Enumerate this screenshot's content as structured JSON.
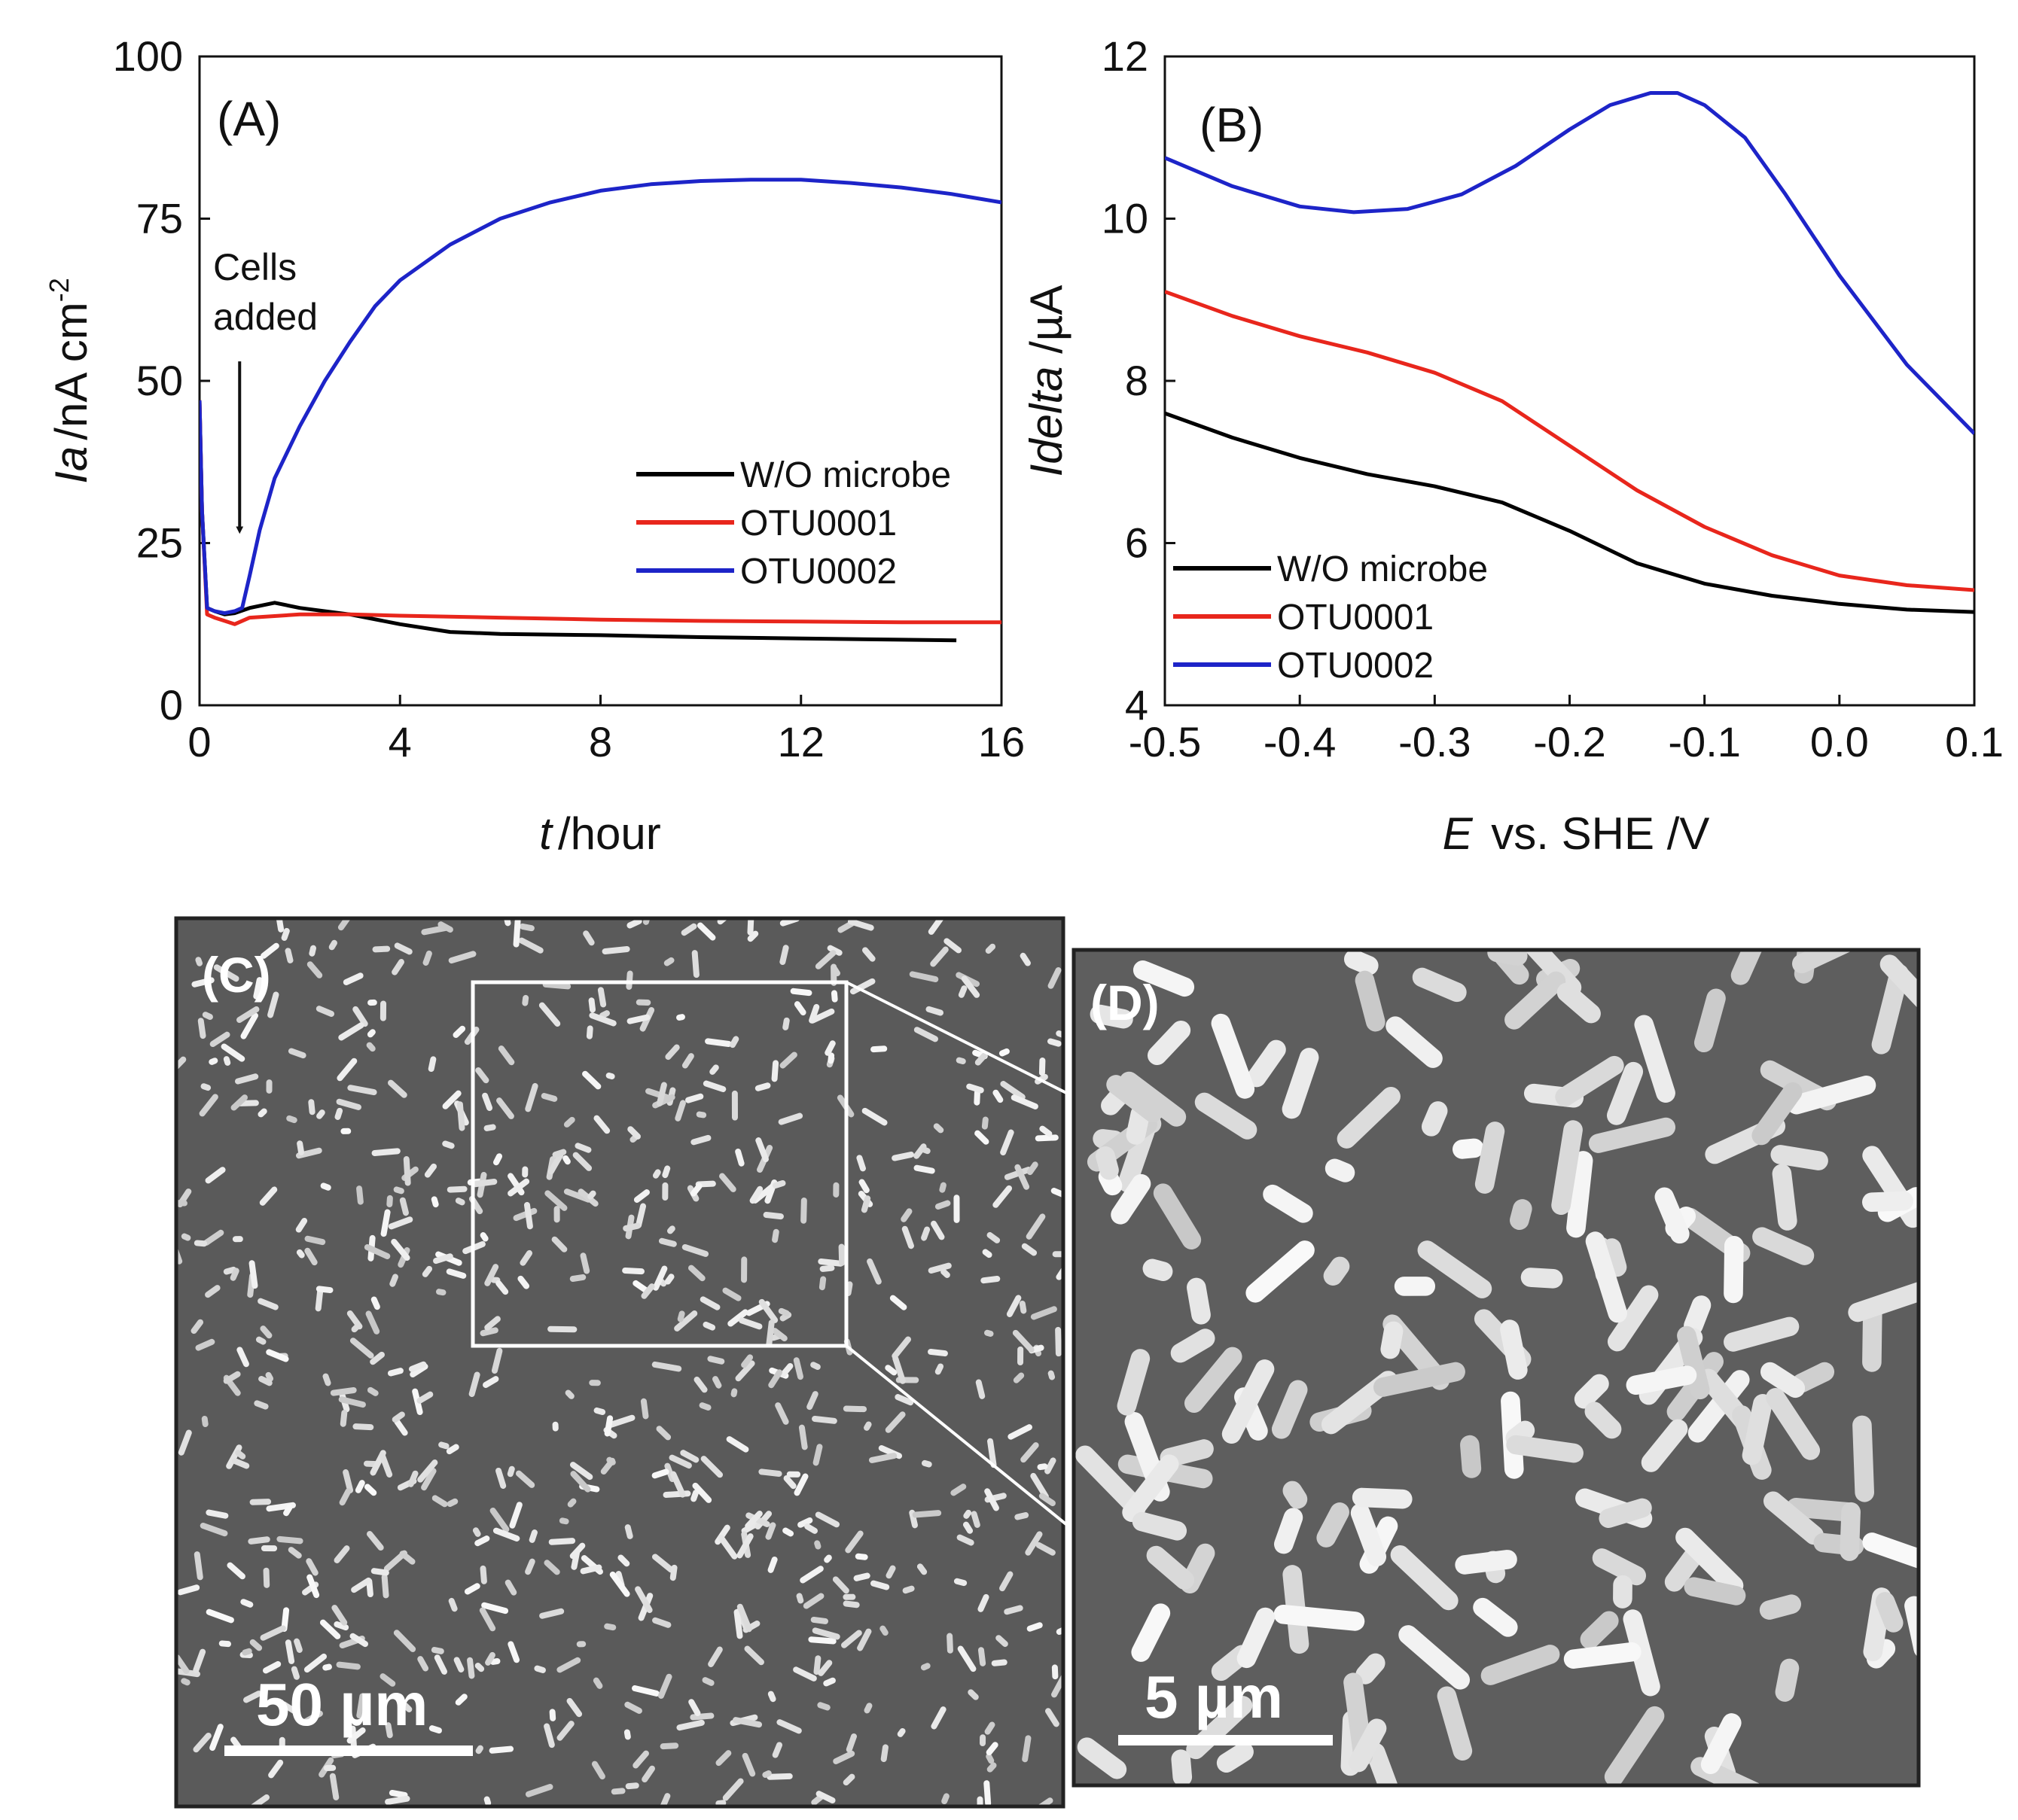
{
  "chart_data": [
    {
      "panel": "(A)",
      "type": "line",
      "xlabel_italic": "t",
      "xlabel_rest": "/hour",
      "ylabel_italic": "Ia",
      "ylabel_rest": "/nA cm",
      "ylabel_sup": "-2",
      "xlim": [
        0,
        16
      ],
      "ylim": [
        0,
        100
      ],
      "xticks": [
        0,
        4,
        8,
        12,
        16
      ],
      "yticks": [
        0,
        25,
        50,
        75,
        100
      ],
      "annotation": [
        "Cells",
        "added"
      ],
      "annotation_arrow": {
        "x": 0.8,
        "y_from": 53,
        "y_to": 27
      },
      "legend_position": "lower-right",
      "series": [
        {
          "name": "W/O microbe",
          "color": "#000000",
          "x": [
            0,
            0.05,
            0.15,
            0.3,
            0.5,
            0.7,
            1.0,
            1.5,
            2.0,
            3.0,
            4.0,
            5.0,
            6.0,
            8.0,
            10.0,
            12.0,
            14.0,
            15.1
          ],
          "y": [
            47,
            30,
            15,
            14.5,
            14,
            14.2,
            15,
            15.8,
            15,
            14,
            12.5,
            11.3,
            11,
            10.8,
            10.5,
            10.3,
            10.1,
            10
          ]
        },
        {
          "name": "OTU0001",
          "color": "#e8261c",
          "x": [
            0,
            0.05,
            0.15,
            0.3,
            0.5,
            0.7,
            1.0,
            2.0,
            3.0,
            4.0,
            6.0,
            8.0,
            10.0,
            12.0,
            14.0,
            16.0
          ],
          "y": [
            47,
            30,
            14,
            13.5,
            13,
            12.5,
            13.5,
            14,
            14,
            13.8,
            13.5,
            13.2,
            13,
            12.9,
            12.8,
            12.8
          ]
        },
        {
          "name": "OTU0002",
          "color": "#1d24c8",
          "x": [
            0,
            0.05,
            0.15,
            0.3,
            0.5,
            0.7,
            0.85,
            1.0,
            1.2,
            1.5,
            2.0,
            2.5,
            3.0,
            3.5,
            4.0,
            5.0,
            6.0,
            7.0,
            8.0,
            9.0,
            10.0,
            11.0,
            12.0,
            13.0,
            14.0,
            15.0,
            16.0
          ],
          "y": [
            47,
            30,
            15,
            14.5,
            14.2,
            14.5,
            15,
            20,
            27,
            35,
            43,
            50,
            56,
            61.5,
            65.5,
            71,
            75,
            77.5,
            79.3,
            80.3,
            80.8,
            81,
            81,
            80.5,
            79.8,
            78.8,
            77.5
          ]
        }
      ]
    },
    {
      "panel": "(B)",
      "type": "line",
      "xlabel_italic": "E",
      "xlabel_rest": " vs. SHE /V",
      "ylabel_italic": "Idelta",
      "ylabel_rest": " /µA",
      "xlim": [
        -0.5,
        0.1
      ],
      "ylim": [
        4,
        12
      ],
      "xticks": [
        -0.5,
        -0.4,
        -0.3,
        -0.2,
        -0.1,
        0.0,
        0.1
      ],
      "xtick_labels": [
        "-0.5",
        "-0.4",
        "-0.3",
        "-0.2",
        "-0.1",
        "0.0",
        "0.1"
      ],
      "yticks": [
        4,
        6,
        8,
        10,
        12
      ],
      "legend_position": "lower-left",
      "series": [
        {
          "name": "W/O microbe",
          "color": "#000000",
          "x": [
            -0.5,
            -0.45,
            -0.4,
            -0.35,
            -0.3,
            -0.25,
            -0.2,
            -0.15,
            -0.1,
            -0.05,
            0.0,
            0.05,
            0.1
          ],
          "y": [
            7.6,
            7.3,
            7.05,
            6.85,
            6.7,
            6.5,
            6.15,
            5.75,
            5.5,
            5.35,
            5.25,
            5.18,
            5.15
          ]
        },
        {
          "name": "OTU0001",
          "color": "#e8261c",
          "x": [
            -0.5,
            -0.45,
            -0.4,
            -0.35,
            -0.3,
            -0.25,
            -0.2,
            -0.15,
            -0.1,
            -0.05,
            0.0,
            0.05,
            0.1
          ],
          "y": [
            9.1,
            8.8,
            8.55,
            8.35,
            8.1,
            7.75,
            7.2,
            6.65,
            6.2,
            5.85,
            5.6,
            5.48,
            5.42
          ]
        },
        {
          "name": "OTU0002",
          "color": "#1d24c8",
          "x": [
            -0.5,
            -0.45,
            -0.4,
            -0.36,
            -0.32,
            -0.28,
            -0.24,
            -0.2,
            -0.17,
            -0.14,
            -0.12,
            -0.1,
            -0.07,
            -0.04,
            0.0,
            0.05,
            0.1
          ],
          "y": [
            10.75,
            10.4,
            10.15,
            10.08,
            10.12,
            10.3,
            10.65,
            11.1,
            11.4,
            11.55,
            11.55,
            11.4,
            11.0,
            10.3,
            9.3,
            8.2,
            7.35
          ]
        }
      ]
    }
  ],
  "micrographs": {
    "panel_c": {
      "label": "(C)",
      "scale": "50 µm"
    },
    "panel_d": {
      "label": "(D)",
      "scale": "5 µm"
    }
  }
}
